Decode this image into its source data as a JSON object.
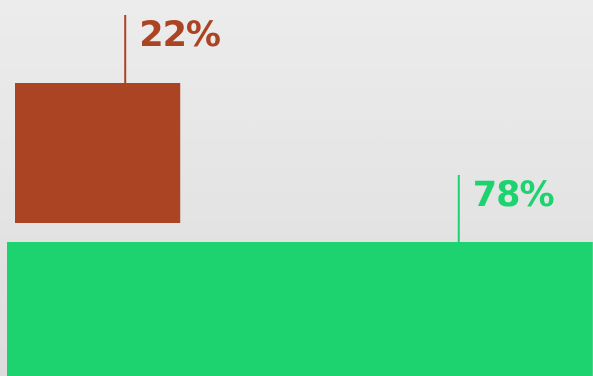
{
  "chart_data": {
    "type": "bar",
    "orientation": "horizontal",
    "categories": [
      "",
      ""
    ],
    "values": [
      22,
      78
    ],
    "value_labels": [
      "22%",
      "78%"
    ],
    "unit": "%",
    "xlim": [
      0,
      100
    ],
    "colors": [
      "#ab4422",
      "#1cd36f"
    ],
    "title": "",
    "xlabel": "",
    "ylabel": "",
    "grid": false,
    "legend": "none"
  }
}
